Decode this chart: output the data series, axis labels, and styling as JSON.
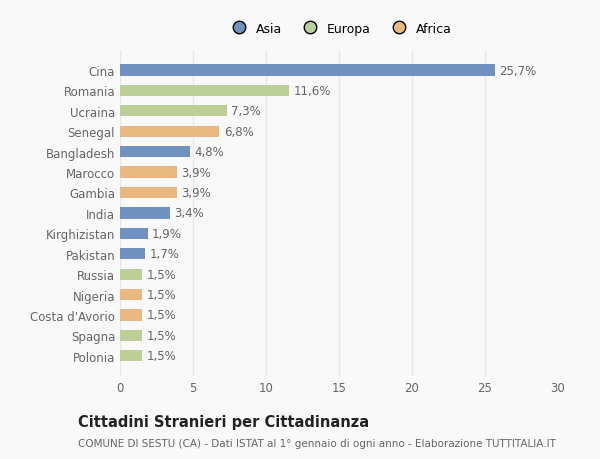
{
  "categories": [
    "Cina",
    "Romania",
    "Ucraina",
    "Senegal",
    "Bangladesh",
    "Marocco",
    "Gambia",
    "India",
    "Kirghizistan",
    "Pakistan",
    "Russia",
    "Nigeria",
    "Costa d'Avorio",
    "Spagna",
    "Polonia"
  ],
  "values": [
    25.7,
    11.6,
    7.3,
    6.8,
    4.8,
    3.9,
    3.9,
    3.4,
    1.9,
    1.7,
    1.5,
    1.5,
    1.5,
    1.5,
    1.5
  ],
  "labels": [
    "25,7%",
    "11,6%",
    "7,3%",
    "6,8%",
    "4,8%",
    "3,9%",
    "3,9%",
    "3,4%",
    "1,9%",
    "1,7%",
    "1,5%",
    "1,5%",
    "1,5%",
    "1,5%",
    "1,5%"
  ],
  "continents": [
    "Asia",
    "Europa",
    "Europa",
    "Africa",
    "Asia",
    "Africa",
    "Africa",
    "Asia",
    "Asia",
    "Asia",
    "Europa",
    "Africa",
    "Africa",
    "Europa",
    "Europa"
  ],
  "colors": {
    "Asia": "#7192c0",
    "Europa": "#bccf96",
    "Africa": "#e8b87e"
  },
  "title": "Cittadini Stranieri per Cittadinanza",
  "subtitle": "COMUNE DI SESTU (CA) - Dati ISTAT al 1° gennaio di ogni anno - Elaborazione TUTTITALIA.IT",
  "xlim": [
    0,
    30
  ],
  "xticks": [
    0,
    5,
    10,
    15,
    20,
    25,
    30
  ],
  "bg_color": "#f9f9f9",
  "grid_color": "#e8e8e8",
  "bar_height": 0.55,
  "label_fontsize": 8.5,
  "tick_fontsize": 8.5,
  "title_fontsize": 10.5,
  "subtitle_fontsize": 7.5
}
